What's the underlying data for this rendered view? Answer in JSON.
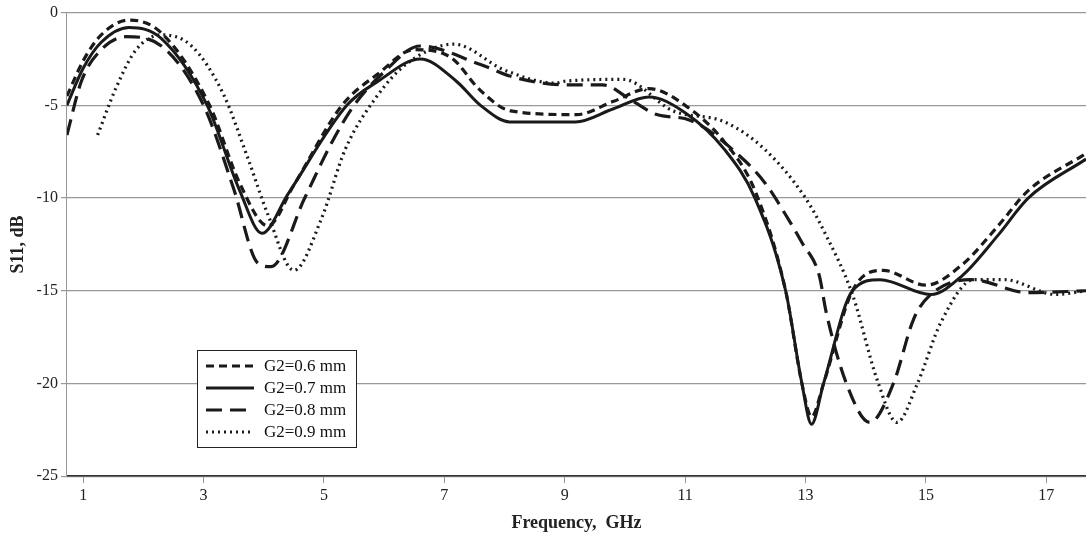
{
  "chart_data": {
    "type": "line",
    "xlabel": "Frequency,  GHz",
    "ylabel": "S11, dB",
    "xlim": [
      0.73,
      17.66
    ],
    "xticks": [
      1,
      3,
      5,
      7,
      9,
      11,
      13,
      15,
      17
    ],
    "ylim": [
      -25,
      0
    ],
    "yticks": [
      0,
      -5,
      -10,
      -15,
      -20,
      -25
    ],
    "grid": "y",
    "legend": "bottom left",
    "marker": "none",
    "series": [
      {
        "name": "G2=0.6 mm",
        "color": "#1a1a1a",
        "line_style": "dashed",
        "x": [
          0.73,
          1.0,
          1.3,
          1.76,
          2.3,
          3.1,
          3.6,
          4.07,
          4.5,
          5.3,
          5.9,
          6.5,
          7.1,
          7.6,
          8.1,
          9.2,
          9.8,
          10.4,
          11.0,
          11.66,
          12.16,
          12.67,
          12.94,
          13.1,
          13.3,
          13.78,
          14.29,
          15.0,
          15.6,
          16.2,
          16.7,
          17.66
        ],
        "values": [
          -4.5,
          -2.6,
          -1.2,
          -0.4,
          -1.1,
          -5,
          -9.2,
          -11.5,
          -9.3,
          -5,
          -3.3,
          -2.0,
          -2.4,
          -4.2,
          -5.3,
          -5.5,
          -4.8,
          -4.1,
          -5.0,
          -7.0,
          -9.6,
          -15,
          -20,
          -21.8,
          -20,
          -15,
          -13.9,
          -14.7,
          -13.6,
          -11.5,
          -9.6,
          -7.6
        ]
      },
      {
        "name": "G2=0.7 mm",
        "color": "#1a1a1a",
        "line_style": "solid",
        "x": [
          0.73,
          1.0,
          1.3,
          1.76,
          2.3,
          3.06,
          3.6,
          3.97,
          4.4,
          5.38,
          5.9,
          6.6,
          7.2,
          7.6,
          8.1,
          9.18,
          9.8,
          10.4,
          11.0,
          11.66,
          12.16,
          12.67,
          12.94,
          13.1,
          13.3,
          13.78,
          14.24,
          15.08,
          15.6,
          16.2,
          16.7,
          17.66
        ],
        "values": [
          -5,
          -3.0,
          -1.6,
          -0.8,
          -1.4,
          -5,
          -9.6,
          -11.9,
          -9.8,
          -5,
          -3.7,
          -2.5,
          -3.7,
          -5.0,
          -5.9,
          -5.9,
          -5.2,
          -4.55,
          -5.4,
          -7.4,
          -10,
          -15,
          -20,
          -22.2,
          -20,
          -15,
          -14.4,
          -15.2,
          -14.2,
          -12.0,
          -10,
          -7.9
        ]
      },
      {
        "name": "G2=0.8 mm",
        "color": "#1a1a1a",
        "line_style": "dashed",
        "x": [
          0.73,
          0.97,
          1.3,
          1.71,
          2.3,
          3.0,
          3.5,
          3.9,
          4.12,
          4.68,
          5.13,
          5.5,
          6.0,
          6.6,
          7.6,
          8.17,
          9.06,
          9.63,
          10.14,
          10.53,
          11.08,
          11.93,
          12.33,
          12.67,
          12.94,
          13.23,
          13.34,
          13.68,
          14.07,
          14.46,
          14.8,
          15.08,
          15.75,
          16.7,
          17.66
        ],
        "values": [
          -6.6,
          -3.7,
          -2.0,
          -1.3,
          -1.8,
          -5,
          -9.5,
          -13.5,
          -13.7,
          -10,
          -7.0,
          -5,
          -3.2,
          -1.8,
          -2.8,
          -3.5,
          -3.9,
          -3.9,
          -4.8,
          -5.5,
          -5.8,
          -7.8,
          -9.2,
          -10.9,
          -12.4,
          -14.2,
          -16.1,
          -20,
          -22.1,
          -20,
          -16.5,
          -15.2,
          -14.4,
          -15.1,
          -15
        ]
      },
      {
        "name": "G2=0.9 mm",
        "color": "#1a1a1a",
        "line_style": "dotted",
        "x": [
          1.24,
          1.54,
          1.88,
          2.3,
          2.8,
          3.33,
          3.73,
          4.07,
          4.5,
          4.96,
          5.35,
          5.86,
          6.36,
          7.16,
          8.0,
          8.84,
          9.01,
          9.97,
          10.8,
          11.66,
          12.33,
          13.0,
          13.34,
          13.78,
          14.19,
          14.52,
          14.86,
          15.25,
          15.8,
          16.3,
          17.16,
          17.66
        ],
        "values": [
          -6.6,
          -4.1,
          -2.0,
          -1.2,
          -1.8,
          -4.4,
          -7.8,
          -10.9,
          -13.9,
          -11.1,
          -7.4,
          -4.6,
          -2.8,
          -1.7,
          -3.1,
          -3.8,
          -3.7,
          -3.6,
          -5.3,
          -5.9,
          -7.4,
          -10,
          -12,
          -15.2,
          -19.8,
          -22.1,
          -20,
          -16.7,
          -14.4,
          -14.4,
          -15.2,
          -15
        ]
      }
    ]
  }
}
